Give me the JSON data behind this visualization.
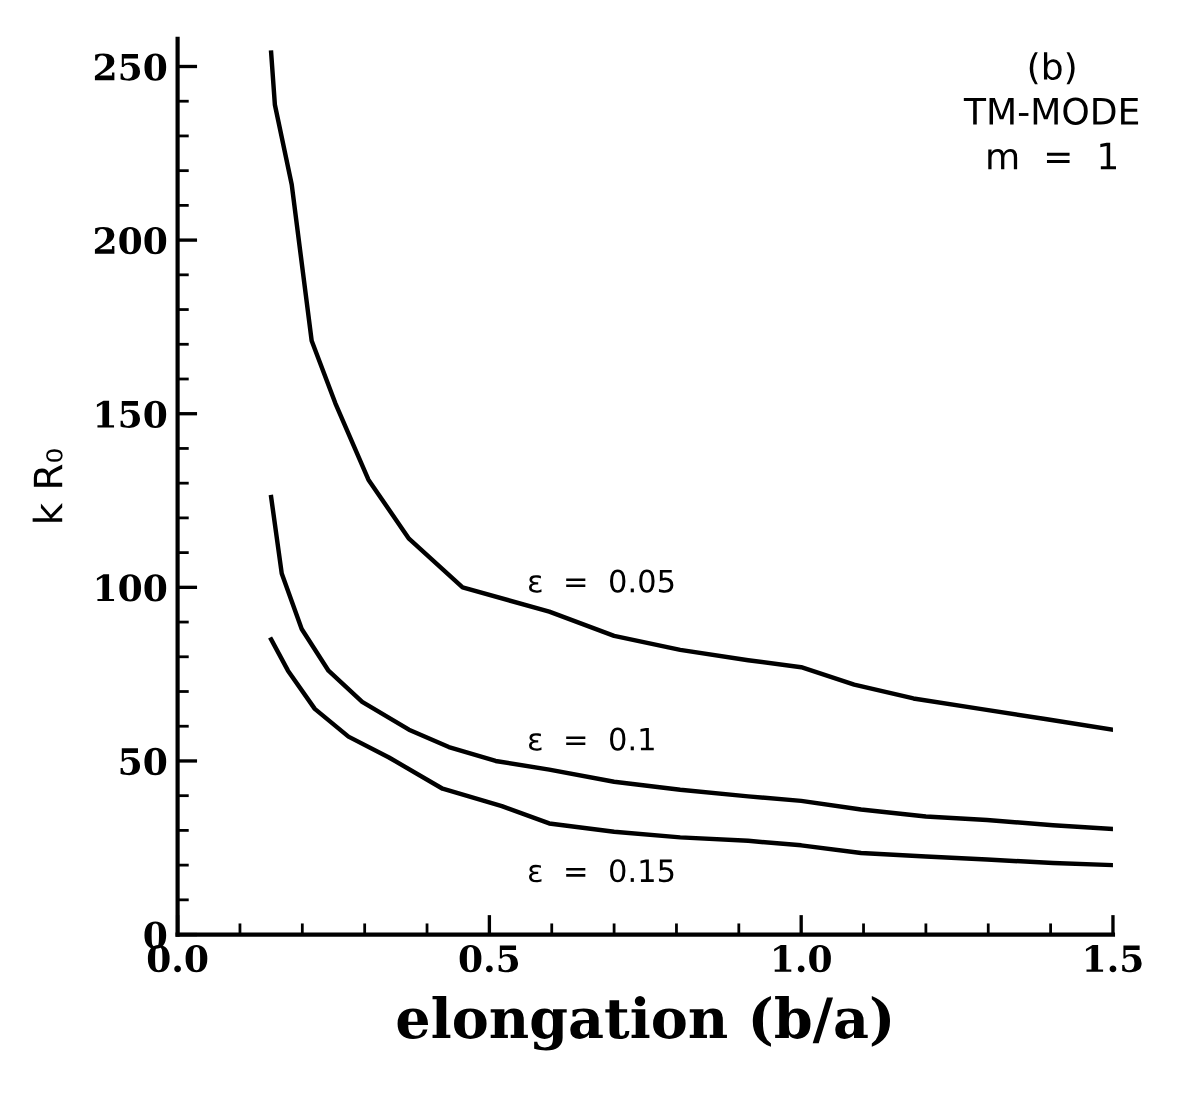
{
  "chart_data": {
    "type": "line",
    "xlabel": "elongation (b/a)",
    "ylabel": "k R₀",
    "annotations": [
      "(b)",
      "TM-MODE",
      "m  =  1"
    ],
    "series": [
      {
        "name": "ε  =  0.05",
        "color": "#000000",
        "x": [
          0.15,
          0.156,
          0.183,
          0.215,
          0.253,
          0.306,
          0.371,
          0.457,
          0.596,
          0.7,
          0.806,
          0.915,
          1.0,
          1.085,
          1.18,
          1.287,
          1.394,
          1.5
        ],
        "values": [
          254,
          239,
          216,
          171,
          153,
          131,
          114,
          100,
          93,
          86,
          82,
          79,
          77,
          72,
          68,
          65,
          62,
          59
        ]
      },
      {
        "name": "ε  =  0.1",
        "color": "#000000",
        "x": [
          0.15,
          0.167,
          0.199,
          0.242,
          0.296,
          0.371,
          0.435,
          0.51,
          0.596,
          0.7,
          0.806,
          0.915,
          1.0,
          1.096,
          1.2,
          1.298,
          1.404,
          1.5
        ],
        "values": [
          126,
          104,
          88,
          76,
          67,
          59,
          54,
          50,
          47.5,
          44,
          41.7,
          39.8,
          38.5,
          36,
          34,
          33,
          31.5,
          30.4
        ]
      },
      {
        "name": "ε  =  0.15",
        "color": "#000000",
        "x": [
          0.15,
          0.177,
          0.22,
          0.274,
          0.339,
          0.425,
          0.52,
          0.596,
          0.7,
          0.806,
          0.915,
          1.0,
          1.096,
          1.2,
          1.298,
          1.404,
          1.5
        ],
        "values": [
          85,
          76,
          65,
          57,
          51,
          42,
          37,
          32,
          29.6,
          28,
          27,
          25.7,
          23.5,
          22.5,
          21.6,
          20.6,
          20
        ]
      }
    ],
    "xlim": [
      0,
      1.5
    ],
    "ylim": [
      0,
      258
    ],
    "xticks": [
      {
        "value": 0,
        "label": "0.0"
      },
      {
        "value": 0.1,
        "label": null
      },
      {
        "value": 0.2,
        "label": null
      },
      {
        "value": 0.3,
        "label": null
      },
      {
        "value": 0.4,
        "label": null
      },
      {
        "value": 0.5,
        "label": "0.5"
      },
      {
        "value": 0.6,
        "label": null
      },
      {
        "value": 0.7,
        "label": null
      },
      {
        "value": 0.8,
        "label": null
      },
      {
        "value": 0.9,
        "label": null
      },
      {
        "value": 1.0,
        "label": "1.0"
      },
      {
        "value": 1.1,
        "label": null
      },
      {
        "value": 1.2,
        "label": null
      },
      {
        "value": 1.3,
        "label": null
      },
      {
        "value": 1.4,
        "label": null
      },
      {
        "value": 1.5,
        "label": "1.5"
      }
    ],
    "yticks": [
      0,
      {
        "value": 10,
        "label": null
      },
      {
        "value": 20,
        "label": null
      },
      {
        "value": 30,
        "label": null
      },
      {
        "value": 40,
        "label": null
      },
      50,
      {
        "value": 60,
        "label": null
      },
      {
        "value": 70,
        "label": null
      },
      {
        "value": 80,
        "label": null
      },
      {
        "value": 90,
        "label": null
      },
      100,
      {
        "value": 110,
        "label": null
      },
      {
        "value": 120,
        "label": null
      },
      {
        "value": 130,
        "label": null
      },
      {
        "value": 140,
        "label": null
      },
      150,
      {
        "value": 160,
        "label": null
      },
      {
        "value": 170,
        "label": null
      },
      {
        "value": 180,
        "label": null
      },
      {
        "value": 190,
        "label": null
      },
      200,
      {
        "value": 210,
        "label": null
      },
      {
        "value": 220,
        "label": null
      },
      {
        "value": 230,
        "label": null
      },
      {
        "value": 240,
        "label": null
      },
      250
    ],
    "grid": false,
    "legend": false,
    "marker": "none",
    "line_style": "solid"
  }
}
